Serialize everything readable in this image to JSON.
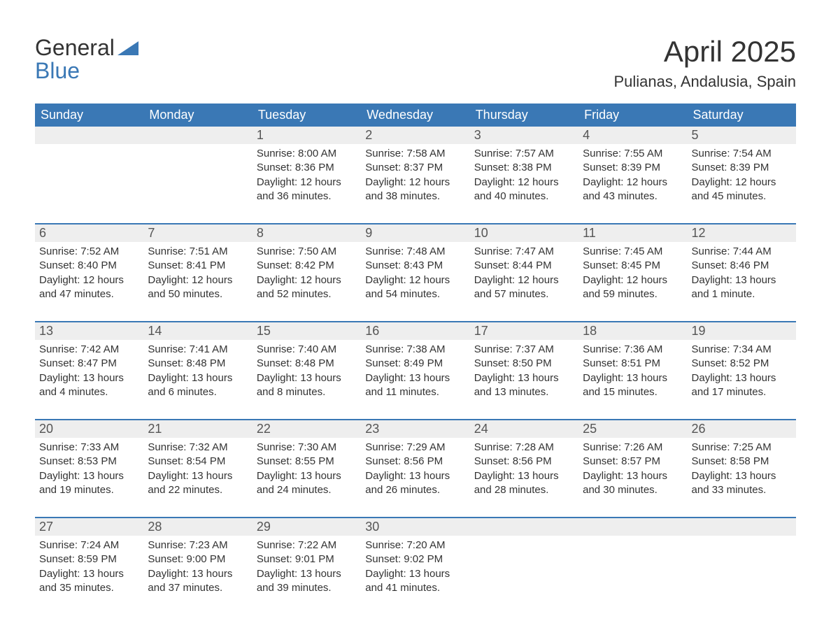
{
  "logo": {
    "word1": "General",
    "word2": "Blue"
  },
  "title": "April 2025",
  "location": "Pulianas, Andalusia, Spain",
  "colors": {
    "header_bg": "#3a78b5",
    "header_text": "#ffffff",
    "daynum_bg": "#eeeeee",
    "text": "#333333",
    "border": "#3a78b5",
    "page_bg": "#ffffff"
  },
  "typography": {
    "title_fontsize": 42,
    "location_fontsize": 22,
    "dow_fontsize": 18,
    "daynum_fontsize": 18,
    "body_fontsize": 15
  },
  "calendar": {
    "type": "table",
    "columns": [
      "Sunday",
      "Monday",
      "Tuesday",
      "Wednesday",
      "Thursday",
      "Friday",
      "Saturday"
    ],
    "weeks": [
      [
        null,
        null,
        {
          "n": "1",
          "sr": "Sunrise: 8:00 AM",
          "ss": "Sunset: 8:36 PM",
          "dl": "Daylight: 12 hours and 36 minutes."
        },
        {
          "n": "2",
          "sr": "Sunrise: 7:58 AM",
          "ss": "Sunset: 8:37 PM",
          "dl": "Daylight: 12 hours and 38 minutes."
        },
        {
          "n": "3",
          "sr": "Sunrise: 7:57 AM",
          "ss": "Sunset: 8:38 PM",
          "dl": "Daylight: 12 hours and 40 minutes."
        },
        {
          "n": "4",
          "sr": "Sunrise: 7:55 AM",
          "ss": "Sunset: 8:39 PM",
          "dl": "Daylight: 12 hours and 43 minutes."
        },
        {
          "n": "5",
          "sr": "Sunrise: 7:54 AM",
          "ss": "Sunset: 8:39 PM",
          "dl": "Daylight: 12 hours and 45 minutes."
        }
      ],
      [
        {
          "n": "6",
          "sr": "Sunrise: 7:52 AM",
          "ss": "Sunset: 8:40 PM",
          "dl": "Daylight: 12 hours and 47 minutes."
        },
        {
          "n": "7",
          "sr": "Sunrise: 7:51 AM",
          "ss": "Sunset: 8:41 PM",
          "dl": "Daylight: 12 hours and 50 minutes."
        },
        {
          "n": "8",
          "sr": "Sunrise: 7:50 AM",
          "ss": "Sunset: 8:42 PM",
          "dl": "Daylight: 12 hours and 52 minutes."
        },
        {
          "n": "9",
          "sr": "Sunrise: 7:48 AM",
          "ss": "Sunset: 8:43 PM",
          "dl": "Daylight: 12 hours and 54 minutes."
        },
        {
          "n": "10",
          "sr": "Sunrise: 7:47 AM",
          "ss": "Sunset: 8:44 PM",
          "dl": "Daylight: 12 hours and 57 minutes."
        },
        {
          "n": "11",
          "sr": "Sunrise: 7:45 AM",
          "ss": "Sunset: 8:45 PM",
          "dl": "Daylight: 12 hours and 59 minutes."
        },
        {
          "n": "12",
          "sr": "Sunrise: 7:44 AM",
          "ss": "Sunset: 8:46 PM",
          "dl": "Daylight: 13 hours and 1 minute."
        }
      ],
      [
        {
          "n": "13",
          "sr": "Sunrise: 7:42 AM",
          "ss": "Sunset: 8:47 PM",
          "dl": "Daylight: 13 hours and 4 minutes."
        },
        {
          "n": "14",
          "sr": "Sunrise: 7:41 AM",
          "ss": "Sunset: 8:48 PM",
          "dl": "Daylight: 13 hours and 6 minutes."
        },
        {
          "n": "15",
          "sr": "Sunrise: 7:40 AM",
          "ss": "Sunset: 8:48 PM",
          "dl": "Daylight: 13 hours and 8 minutes."
        },
        {
          "n": "16",
          "sr": "Sunrise: 7:38 AM",
          "ss": "Sunset: 8:49 PM",
          "dl": "Daylight: 13 hours and 11 minutes."
        },
        {
          "n": "17",
          "sr": "Sunrise: 7:37 AM",
          "ss": "Sunset: 8:50 PM",
          "dl": "Daylight: 13 hours and 13 minutes."
        },
        {
          "n": "18",
          "sr": "Sunrise: 7:36 AM",
          "ss": "Sunset: 8:51 PM",
          "dl": "Daylight: 13 hours and 15 minutes."
        },
        {
          "n": "19",
          "sr": "Sunrise: 7:34 AM",
          "ss": "Sunset: 8:52 PM",
          "dl": "Daylight: 13 hours and 17 minutes."
        }
      ],
      [
        {
          "n": "20",
          "sr": "Sunrise: 7:33 AM",
          "ss": "Sunset: 8:53 PM",
          "dl": "Daylight: 13 hours and 19 minutes."
        },
        {
          "n": "21",
          "sr": "Sunrise: 7:32 AM",
          "ss": "Sunset: 8:54 PM",
          "dl": "Daylight: 13 hours and 22 minutes."
        },
        {
          "n": "22",
          "sr": "Sunrise: 7:30 AM",
          "ss": "Sunset: 8:55 PM",
          "dl": "Daylight: 13 hours and 24 minutes."
        },
        {
          "n": "23",
          "sr": "Sunrise: 7:29 AM",
          "ss": "Sunset: 8:56 PM",
          "dl": "Daylight: 13 hours and 26 minutes."
        },
        {
          "n": "24",
          "sr": "Sunrise: 7:28 AM",
          "ss": "Sunset: 8:56 PM",
          "dl": "Daylight: 13 hours and 28 minutes."
        },
        {
          "n": "25",
          "sr": "Sunrise: 7:26 AM",
          "ss": "Sunset: 8:57 PM",
          "dl": "Daylight: 13 hours and 30 minutes."
        },
        {
          "n": "26",
          "sr": "Sunrise: 7:25 AM",
          "ss": "Sunset: 8:58 PM",
          "dl": "Daylight: 13 hours and 33 minutes."
        }
      ],
      [
        {
          "n": "27",
          "sr": "Sunrise: 7:24 AM",
          "ss": "Sunset: 8:59 PM",
          "dl": "Daylight: 13 hours and 35 minutes."
        },
        {
          "n": "28",
          "sr": "Sunrise: 7:23 AM",
          "ss": "Sunset: 9:00 PM",
          "dl": "Daylight: 13 hours and 37 minutes."
        },
        {
          "n": "29",
          "sr": "Sunrise: 7:22 AM",
          "ss": "Sunset: 9:01 PM",
          "dl": "Daylight: 13 hours and 39 minutes."
        },
        {
          "n": "30",
          "sr": "Sunrise: 7:20 AM",
          "ss": "Sunset: 9:02 PM",
          "dl": "Daylight: 13 hours and 41 minutes."
        },
        null,
        null,
        null
      ]
    ]
  }
}
